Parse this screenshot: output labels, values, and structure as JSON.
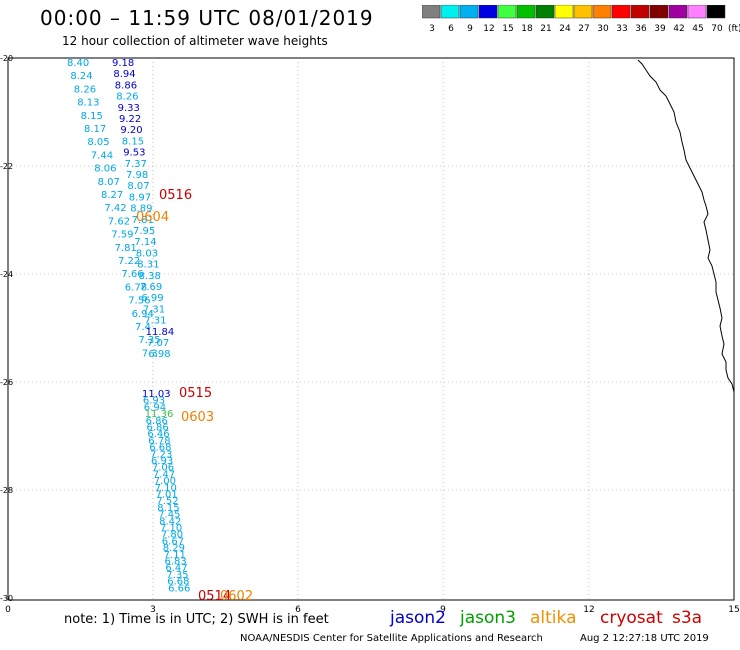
{
  "header": {
    "title": "00:00 – 11:59 UTC 08/01/2019",
    "subtitle": "12 hour collection of altimeter wave heights"
  },
  "legend": {
    "unit": "(ft)",
    "steps": [
      {
        "label": "3",
        "color": "#7f7f7f"
      },
      {
        "label": "6",
        "color": "#00f0f0"
      },
      {
        "label": "9",
        "color": "#00b0f0"
      },
      {
        "label": "12",
        "color": "#0000e0"
      },
      {
        "label": "15",
        "color": "#40ff40"
      },
      {
        "label": "18",
        "color": "#00c000"
      },
      {
        "label": "21",
        "color": "#008000"
      },
      {
        "label": "24",
        "color": "#ffff00"
      },
      {
        "label": "27",
        "color": "#ffc000"
      },
      {
        "label": "30",
        "color": "#ff8000"
      },
      {
        "label": "33",
        "color": "#ff0000"
      },
      {
        "label": "36",
        "color": "#c00000"
      },
      {
        "label": "39",
        "color": "#800000"
      },
      {
        "label": "42",
        "color": "#a000a0"
      },
      {
        "label": "45",
        "color": "#ff80ff"
      },
      {
        "label": "70",
        "color": "#000000"
      }
    ]
  },
  "axes": {
    "x_ticks": [
      "0",
      "3",
      "6",
      "9",
      "12",
      "15"
    ],
    "y_ticks": [
      "-20",
      "-22",
      "-24",
      "-26",
      "-28",
      "-30"
    ]
  },
  "track_colors": {
    "cyan": "#00a8e8",
    "blue": "#0000cc",
    "green": "#40c040",
    "red": "#cc0000",
    "orange": "#f08000"
  },
  "labels": {
    "col1": [
      "8.40",
      "8.24",
      "8.26",
      "8.13",
      "8.15",
      "8.17",
      "8.05",
      "7.44",
      "8.06",
      "8.07",
      "8.27",
      "7.42",
      "7.62",
      "7.59",
      "7.81",
      "7.22",
      "7.66",
      "6.78",
      "7.56",
      "6.94",
      "7.4",
      "7.35",
      "7.3"
    ],
    "col2": [
      "9.18",
      "8.94",
      "8.86",
      "8.26",
      "9.33",
      "9.22",
      "9.20",
      "8.15",
      "9.53",
      "7.37",
      "7.98",
      "8.07",
      "8.97",
      "8.89",
      "7.81",
      "7.95",
      "7.14",
      "8.03",
      "8.31",
      "8.38",
      "7.69",
      "6.99",
      "7.31",
      "7.31",
      "11.84",
      "7.07",
      "6.98"
    ],
    "col3": [
      "11.03",
      "6.93",
      "6.94",
      "11.36",
      "6.86",
      "6.86",
      "6.46",
      "6.78",
      "6.68",
      "7.23",
      "6.93",
      "7.06",
      "7.47",
      "7.00",
      "7.10",
      "7.01",
      "7.52",
      "8.15",
      "7.45",
      "8.42",
      "7.10",
      "7.80",
      "6.67",
      "8.29",
      "7.11",
      "6.83",
      "6.47",
      "7.35",
      "6.68",
      "6.66"
    ],
    "times": [
      {
        "text": "0516",
        "color": "red"
      },
      {
        "text": "0604",
        "color": "orange"
      },
      {
        "text": "0515",
        "color": "red"
      },
      {
        "text": "0603",
        "color": "orange"
      },
      {
        "text": "0514",
        "color": "red"
      },
      {
        "text": "0602",
        "color": "orange"
      }
    ]
  },
  "footer": {
    "note": "note: 1) Time is in UTC; 2) SWH is in feet",
    "satellites": [
      {
        "name": "jason2",
        "color": "#0000cc"
      },
      {
        "name": "jason3",
        "color": "#00a000"
      },
      {
        "name": "altika",
        "color": "#f09000"
      },
      {
        "name": "cryosat",
        "color": "#cc0000"
      },
      {
        "name": "s3a",
        "color": "#cc0000"
      }
    ],
    "credit": "NOAA/NESDIS Center for Satellite Applications and Research",
    "timestamp": "Aug  2 12:27:18 UTC 2019"
  }
}
